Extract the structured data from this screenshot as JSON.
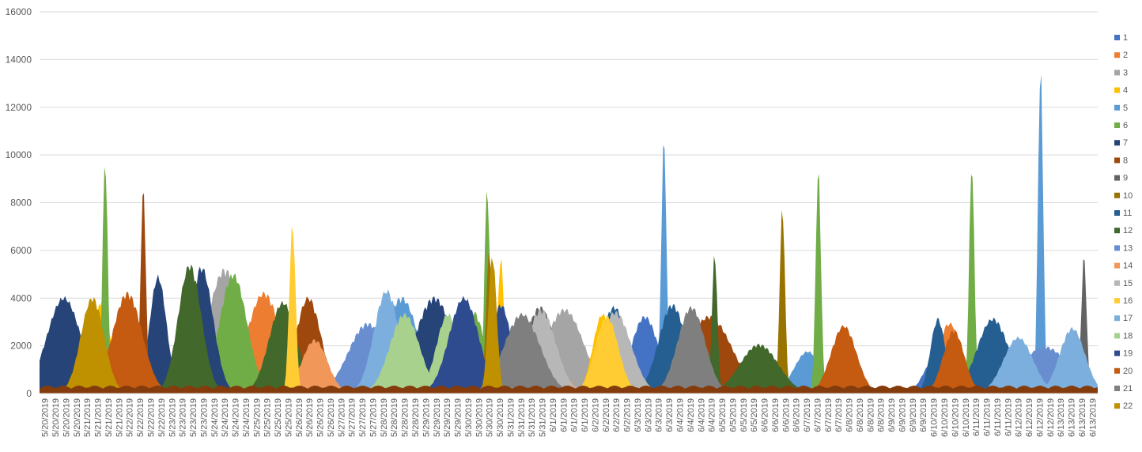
{
  "chart_data": {
    "type": "area",
    "title": "",
    "xlabel": "",
    "ylabel": "",
    "ylim": [
      0,
      16000
    ],
    "yticks": [
      0,
      2000,
      4000,
      6000,
      8000,
      10000,
      12000,
      14000,
      16000
    ],
    "grid": true,
    "legend_position": "right",
    "x": [
      "5/20/2019",
      "5/20/2019",
      "5/20/2019",
      "5/20/2019",
      "5/21/2019",
      "5/21/2019",
      "5/21/2019",
      "5/21/2019",
      "5/22/2019",
      "5/22/2019",
      "5/22/2019",
      "5/22/2019",
      "5/23/2019",
      "5/23/2019",
      "5/23/2019",
      "5/23/2019",
      "5/24/2019",
      "5/24/2019",
      "5/24/2019",
      "5/24/2019",
      "5/25/2019",
      "5/25/2019",
      "5/25/2019",
      "5/25/2019",
      "5/26/2019",
      "5/26/2019",
      "5/26/2019",
      "5/26/2019",
      "5/27/2019",
      "5/27/2019",
      "5/27/2019",
      "5/27/2019",
      "5/28/2019",
      "5/28/2019",
      "5/28/2019",
      "5/28/2019",
      "5/29/2019",
      "5/29/2019",
      "5/29/2019",
      "5/29/2019",
      "5/30/2019",
      "5/30/2019",
      "5/30/2019",
      "5/30/2019",
      "5/31/2019",
      "5/31/2019",
      "5/31/2019",
      "5/31/2019",
      "6/1/2019",
      "6/1/2019",
      "6/1/2019",
      "6/1/2019",
      "6/2/2019",
      "6/2/2019",
      "6/2/2019",
      "6/2/2019",
      "6/3/2019",
      "6/3/2019",
      "6/3/2019",
      "6/3/2019",
      "6/4/2019",
      "6/4/2019",
      "6/4/2019",
      "6/4/2019",
      "6/5/2019",
      "6/5/2019",
      "6/5/2019",
      "6/5/2019",
      "6/6/2019",
      "6/6/2019",
      "6/6/2019",
      "6/6/2019",
      "6/7/2019",
      "6/7/2019",
      "6/7/2019",
      "6/7/2019",
      "6/8/2019",
      "6/8/2019",
      "6/8/2019",
      "6/8/2019",
      "6/9/2019",
      "6/9/2019",
      "6/9/2019",
      "6/9/2019",
      "6/10/2019",
      "6/10/2019",
      "6/10/2019",
      "6/10/2019",
      "6/11/2019",
      "6/11/2019",
      "6/11/2019",
      "6/11/2019",
      "6/12/2019",
      "6/12/2019",
      "6/12/2019",
      "6/12/2019",
      "6/13/2019",
      "6/13/2019",
      "6/13/2019",
      "6/13/2019"
    ],
    "series": [
      {
        "name": "1",
        "color": "#4472C4",
        "peaks": [
          [
            57.2,
            3300,
            1.3
          ],
          [
            84.5,
            1400,
            1.0
          ]
        ]
      },
      {
        "name": "2",
        "color": "#ED7D31",
        "peaks": [
          [
            21.2,
            4300,
            1.6
          ],
          [
            17.0,
            400,
            1.5
          ],
          [
            86.0,
            3000,
            1.2
          ]
        ]
      },
      {
        "name": "3",
        "color": "#A5A5A5",
        "peaks": [
          [
            17.5,
            5300,
            1.6
          ],
          [
            49.6,
            3600,
            1.8
          ]
        ]
      },
      {
        "name": "4",
        "color": "#FFC000",
        "peaks": [
          [
            5.9,
            4000,
            0.8
          ],
          [
            43.6,
            5800,
            0.3
          ],
          [
            53.2,
            3400,
            0.9
          ]
        ]
      },
      {
        "name": "5",
        "color": "#5B9BD5",
        "peaks": [
          [
            34.2,
            4100,
            1.6
          ],
          [
            59.0,
            10900,
            0.25
          ],
          [
            72.6,
            1800,
            1.3
          ],
          [
            94.6,
            13900,
            0.25
          ]
        ]
      },
      {
        "name": "6",
        "color": "#70AD47",
        "peaks": [
          [
            6.2,
            10000,
            0.25
          ],
          [
            18.3,
            5100,
            1.3
          ],
          [
            41.0,
            3500,
            1.1
          ],
          [
            42.3,
            8900,
            0.25
          ],
          [
            73.6,
            9600,
            0.25
          ],
          [
            88.1,
            9800,
            0.25
          ]
        ]
      },
      {
        "name": "7",
        "color": "#264478",
        "peaks": [
          [
            2.3,
            4100,
            1.6
          ],
          [
            11.2,
            5000,
            0.8
          ],
          [
            15.3,
            5400,
            1.1
          ],
          [
            37.3,
            4100,
            1.8
          ],
          [
            61.0,
            300,
            6.0
          ],
          [
            98.3,
            1500,
            0.8
          ]
        ]
      },
      {
        "name": "8",
        "color": "#9E480E",
        "peaks": [
          [
            9.8,
            8800,
            0.25
          ],
          [
            25.4,
            4100,
            1.2
          ],
          [
            63.3,
            3300,
            2.1
          ],
          [
            92.0,
            300,
            8.0
          ]
        ]
      },
      {
        "name": "9",
        "color": "#636363",
        "peaks": [
          [
            47.3,
            3700,
            1.4
          ],
          [
            98.7,
            5900,
            0.25
          ]
        ]
      },
      {
        "name": "10",
        "color": "#997300",
        "peaks": [
          [
            70.2,
            8000,
            0.25
          ],
          [
            42.5,
            6100,
            0.3
          ]
        ]
      },
      {
        "name": "11",
        "color": "#255E91",
        "peaks": [
          [
            54.3,
            3700,
            1.3
          ],
          [
            59.8,
            3800,
            1.3
          ],
          [
            84.9,
            3200,
            0.7
          ],
          [
            90.1,
            3200,
            1.5
          ]
        ]
      },
      {
        "name": "12",
        "color": "#43682B",
        "peaks": [
          [
            14.2,
            5500,
            1.1
          ],
          [
            23.0,
            3900,
            1.3
          ],
          [
            68.0,
            2100,
            1.8
          ],
          [
            63.8,
            6000,
            0.25
          ]
        ]
      },
      {
        "name": "13",
        "color": "#698ED0",
        "peaks": [
          [
            31.0,
            3000,
            1.8
          ],
          [
            95.0,
            2000,
            2.3
          ]
        ]
      },
      {
        "name": "14",
        "color": "#F1975A",
        "peaks": [
          [
            26.0,
            2300,
            1.2
          ],
          [
            48.3,
            1500,
            1.3
          ]
        ]
      },
      {
        "name": "15",
        "color": "#B7B7B7",
        "peaks": [
          [
            47.4,
            3600,
            1.4
          ],
          [
            54.4,
            3500,
            1.5
          ]
        ]
      },
      {
        "name": "16",
        "color": "#FFCD33",
        "peaks": [
          [
            53.6,
            3300,
            1.1
          ],
          [
            23.9,
            7200,
            0.3
          ]
        ]
      },
      {
        "name": "17",
        "color": "#7CAFDD",
        "peaks": [
          [
            32.8,
            4400,
            1.2
          ],
          [
            92.5,
            2400,
            1.4
          ],
          [
            97.6,
            2800,
            1.2
          ]
        ]
      },
      {
        "name": "18",
        "color": "#A9D18E",
        "peaks": [
          [
            34.5,
            3400,
            1.4
          ],
          [
            38.6,
            3400,
            1.1
          ]
        ]
      },
      {
        "name": "19",
        "color": "#2F4B8F",
        "peaks": [
          [
            40.1,
            4100,
            1.4
          ],
          [
            43.6,
            3800,
            1.0
          ]
        ]
      },
      {
        "name": "20",
        "color": "#C55A11",
        "peaks": [
          [
            8.3,
            4300,
            1.4
          ],
          [
            76.0,
            2900,
            1.2
          ],
          [
            86.4,
            2700,
            1.0
          ]
        ]
      },
      {
        "name": "21",
        "color": "#7F7F7F",
        "peaks": [
          [
            45.6,
            3400,
            1.7
          ],
          [
            61.6,
            3700,
            1.3
          ]
        ]
      },
      {
        "name": "22",
        "color": "#BF9000",
        "peaks": [
          [
            5.0,
            4100,
            1.1
          ],
          [
            42.8,
            5900,
            0.4
          ]
        ]
      }
    ],
    "base_series": {
      "name": "8",
      "color": "#843C0C",
      "level": 280
    }
  }
}
